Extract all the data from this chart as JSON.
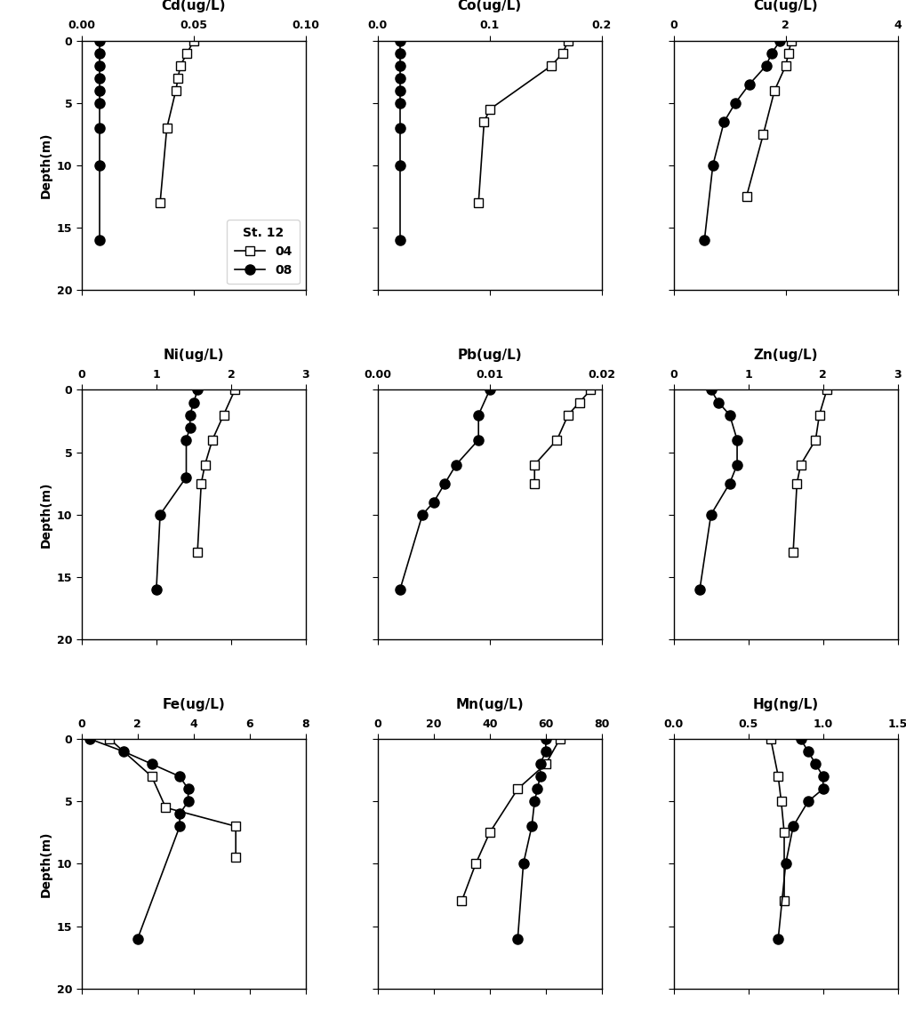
{
  "plots": [
    {
      "title": "Cd(ug/L)",
      "xlim": [
        0.0,
        0.1
      ],
      "xticks": [
        0.0,
        0.05,
        0.1
      ],
      "xticklabels": [
        "0.00",
        "0.05",
        "0.10"
      ],
      "s04": {
        "x": [
          0.05,
          0.047,
          0.044,
          0.043,
          0.042,
          0.038,
          0.035
        ],
        "y": [
          0,
          1,
          2,
          3,
          4,
          7,
          13
        ]
      },
      "s08": {
        "x": [
          0.008,
          0.008,
          0.008,
          0.008,
          0.008,
          0.008,
          0.008,
          0.008,
          0.008
        ],
        "y": [
          0,
          1,
          2,
          3,
          4,
          5,
          7,
          10,
          16
        ]
      }
    },
    {
      "title": "Co(ug/L)",
      "xlim": [
        0.0,
        0.2
      ],
      "xticks": [
        0.0,
        0.1,
        0.2
      ],
      "xticklabels": [
        "0.0",
        "0.1",
        "0.2"
      ],
      "s04": {
        "x": [
          0.17,
          0.165,
          0.155,
          0.1,
          0.095,
          0.09
        ],
        "y": [
          0,
          1,
          2,
          5.5,
          6.5,
          13
        ]
      },
      "s08": {
        "x": [
          0.02,
          0.02,
          0.02,
          0.02,
          0.02,
          0.02,
          0.02,
          0.02,
          0.02
        ],
        "y": [
          0,
          1,
          2,
          3,
          4,
          5,
          7,
          10,
          16
        ]
      }
    },
    {
      "title": "Cu(ug/L)",
      "xlim": [
        0,
        4
      ],
      "xticks": [
        0,
        2,
        4
      ],
      "xticklabels": [
        "0",
        "2",
        "4"
      ],
      "s04": {
        "x": [
          2.1,
          2.05,
          2.0,
          1.8,
          1.6,
          1.3
        ],
        "y": [
          0,
          1,
          2,
          4,
          7.5,
          12.5
        ]
      },
      "s08": {
        "x": [
          1.9,
          1.75,
          1.65,
          1.35,
          1.1,
          0.9,
          0.7,
          0.55
        ],
        "y": [
          0,
          1,
          2,
          3.5,
          5,
          6.5,
          10,
          16
        ]
      }
    },
    {
      "title": "Ni(ug/L)",
      "xlim": [
        0,
        3
      ],
      "xticks": [
        0,
        1,
        2,
        3
      ],
      "xticklabels": [
        "0",
        "1",
        "2",
        "3"
      ],
      "s04": {
        "x": [
          2.05,
          1.9,
          1.75,
          1.65,
          1.6,
          1.55
        ],
        "y": [
          0,
          2,
          4,
          6,
          7.5,
          13
        ]
      },
      "s08": {
        "x": [
          1.55,
          1.5,
          1.45,
          1.45,
          1.4,
          1.4,
          1.05,
          1.0
        ],
        "y": [
          0,
          1,
          2,
          3,
          4,
          7,
          10,
          16
        ]
      }
    },
    {
      "title": "Pb(ug/L)",
      "xlim": [
        0.0,
        0.02
      ],
      "xticks": [
        0.0,
        0.01,
        0.02
      ],
      "xticklabels": [
        "0.00",
        "0.01",
        "0.02"
      ],
      "s04": {
        "x": [
          0.019,
          0.018,
          0.017,
          0.016,
          0.014,
          0.014
        ],
        "y": [
          0,
          1,
          2,
          4,
          6,
          7.5
        ]
      },
      "s08": {
        "x": [
          0.01,
          0.009,
          0.009,
          0.007,
          0.006,
          0.005,
          0.004,
          0.002
        ],
        "y": [
          0,
          2,
          4,
          6,
          7.5,
          9,
          10,
          16
        ]
      }
    },
    {
      "title": "Zn(ug/L)",
      "xlim": [
        0,
        3
      ],
      "xticks": [
        0,
        1,
        2,
        3
      ],
      "xticklabels": [
        "0",
        "1",
        "2",
        "3"
      ],
      "s04": {
        "x": [
          2.05,
          1.95,
          1.9,
          1.7,
          1.65,
          1.6
        ],
        "y": [
          0,
          2,
          4,
          6,
          7.5,
          13
        ]
      },
      "s08": {
        "x": [
          0.5,
          0.6,
          0.75,
          0.85,
          0.85,
          0.75,
          0.5,
          0.35
        ],
        "y": [
          0,
          1,
          2,
          4,
          6,
          7.5,
          10,
          16
        ]
      }
    },
    {
      "title": "Fe(ug/L)",
      "xlim": [
        0,
        8
      ],
      "xticks": [
        0,
        2,
        4,
        6,
        8
      ],
      "xticklabels": [
        "0",
        "2",
        "4",
        "6",
        "8"
      ],
      "s04": {
        "x": [
          1.0,
          2.5,
          3.0,
          5.5,
          5.5
        ],
        "y": [
          0,
          3,
          5.5,
          7,
          9.5
        ]
      },
      "s08": {
        "x": [
          0.3,
          1.5,
          2.5,
          3.5,
          3.8,
          3.8,
          3.5,
          3.5,
          2.0
        ],
        "y": [
          0,
          1,
          2,
          3,
          4,
          5,
          6,
          7,
          16
        ]
      }
    },
    {
      "title": "Mn(ug/L)",
      "xlim": [
        0,
        80
      ],
      "xticks": [
        0,
        20,
        40,
        60,
        80
      ],
      "xticklabels": [
        "0",
        "20",
        "40",
        "60",
        "80"
      ],
      "s04": {
        "x": [
          65,
          60,
          50,
          40,
          35,
          30
        ],
        "y": [
          0,
          2,
          4,
          7.5,
          10,
          13
        ]
      },
      "s08": {
        "x": [
          60,
          60,
          58,
          58,
          57,
          56,
          55,
          52,
          50
        ],
        "y": [
          0,
          1,
          2,
          3,
          4,
          5,
          7,
          10,
          16
        ]
      }
    },
    {
      "title": "Hg(ng/L)",
      "xlim": [
        0.0,
        1.5
      ],
      "xticks": [
        0.0,
        0.5,
        1.0,
        1.5
      ],
      "xticklabels": [
        "0.0",
        "0.5",
        "1.0",
        "1.5"
      ],
      "s04": {
        "x": [
          0.65,
          0.7,
          0.72,
          0.74,
          0.74
        ],
        "y": [
          0,
          3,
          5,
          7.5,
          13
        ]
      },
      "s08": {
        "x": [
          0.85,
          0.9,
          0.95,
          1.0,
          1.0,
          0.9,
          0.8,
          0.75,
          0.7
        ],
        "y": [
          0,
          1,
          2,
          3,
          4,
          5,
          7,
          10,
          16
        ]
      }
    }
  ],
  "ylim": [
    20,
    0
  ],
  "yticks": [
    0,
    5,
    10,
    15,
    20
  ],
  "ylabel": "Depth(m)",
  "legend_title": "St. 12",
  "legend_04": "04",
  "legend_08": "08"
}
